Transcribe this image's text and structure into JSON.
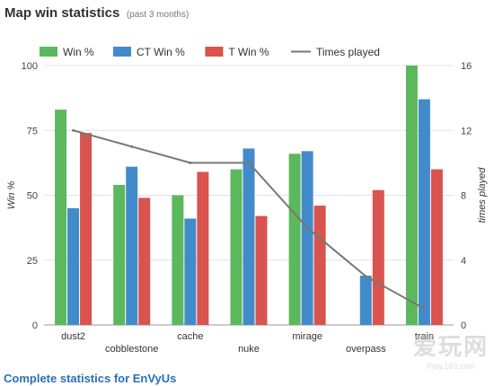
{
  "header": {
    "title": "Map win statistics",
    "subtitle": "(past 3 months)"
  },
  "footer": {
    "link_label": "Complete statistics for EnVyUs"
  },
  "watermark": {
    "main": "爱玩网",
    "sub": "Play.163.com"
  },
  "colors": {
    "win": "#5cb85c",
    "ct": "#428bca",
    "t": "#d9534f",
    "times": "#777777",
    "grid": "#e3e3e3",
    "axis_text": "#444444"
  },
  "chart_data": {
    "type": "bar",
    "categories": [
      "dust2",
      "cobblestone",
      "cache",
      "nuke",
      "mirage",
      "overpass",
      "train"
    ],
    "series": [
      {
        "name": "Win %",
        "type": "bar",
        "axis": "left",
        "values": [
          83,
          54,
          50,
          60,
          66,
          0,
          100
        ]
      },
      {
        "name": "CT Win %",
        "type": "bar",
        "axis": "left",
        "values": [
          45,
          61,
          41,
          68,
          67,
          19,
          87
        ]
      },
      {
        "name": "T Win %",
        "type": "bar",
        "axis": "left",
        "values": [
          74,
          49,
          59,
          42,
          46,
          52,
          60
        ]
      },
      {
        "name": "Times played",
        "type": "line",
        "axis": "right",
        "values": [
          12,
          11,
          10,
          10,
          6,
          3,
          1
        ]
      }
    ],
    "ylabel": "Win %",
    "y2label": "times played",
    "ylim": [
      0,
      100
    ],
    "y2lim": [
      0,
      16
    ],
    "yticks": [
      "0",
      "25",
      "50",
      "75",
      "100"
    ],
    "y2ticks": [
      "0",
      "4",
      "8",
      "12",
      "16"
    ],
    "grid": true,
    "legend": "top-left"
  }
}
